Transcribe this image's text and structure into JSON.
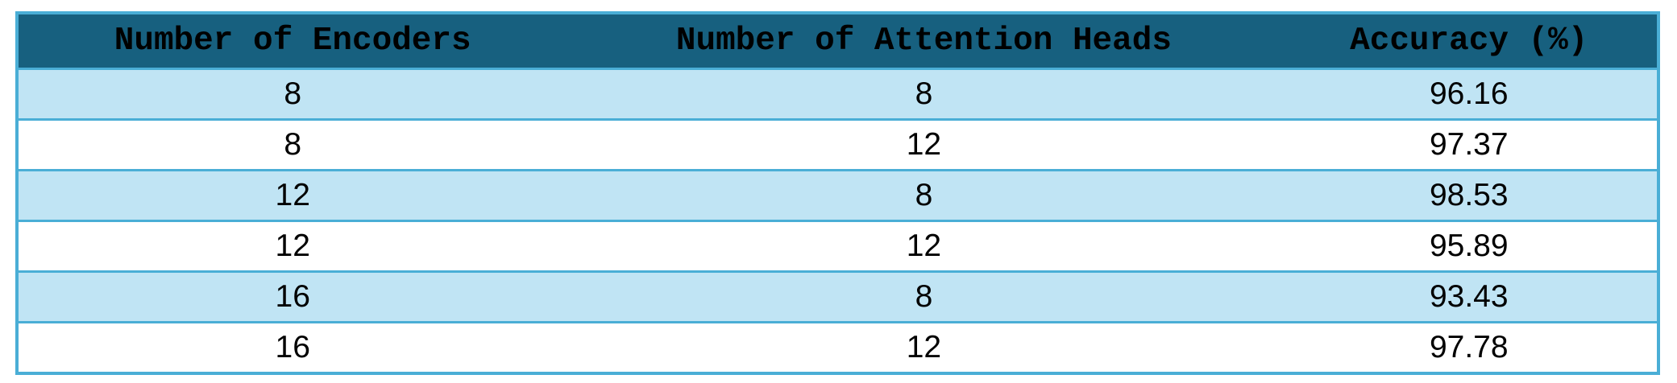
{
  "table": {
    "headers": [
      "Number of Encoders",
      "Number of Attention Heads",
      "Accuracy (%)"
    ],
    "rows": [
      [
        "8",
        "8",
        "96.16"
      ],
      [
        "8",
        "12",
        "97.37"
      ],
      [
        "12",
        "8",
        "98.53"
      ],
      [
        "12",
        "12",
        "95.89"
      ],
      [
        "16",
        "8",
        "93.43"
      ],
      [
        "16",
        "12",
        "97.78"
      ]
    ]
  },
  "colors": {
    "header_bg": "#17607f",
    "stripe_bg": "#c0e4f4",
    "border": "#4aaed6"
  }
}
